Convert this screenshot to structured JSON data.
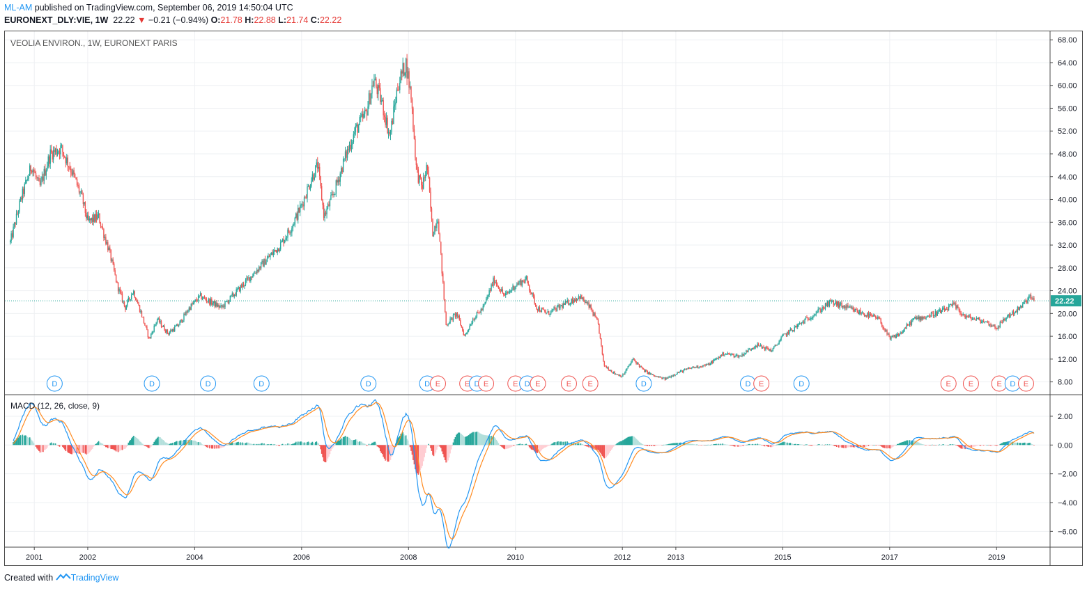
{
  "header": {
    "author": "ML-AM",
    "published_text": "published on TradingView.com, September 06, 2019 14:50:04 UTC"
  },
  "quote": {
    "symbol": "EURONEXT_DLY:VIE, 1W",
    "last": "22.22",
    "change": "−0.21 (−0.94%)",
    "o_label": "O:",
    "o": "21.78",
    "h_label": "H:",
    "h": "22.88",
    "l_label": "L:",
    "l": "21.74",
    "c_label": "C:",
    "c": "22.22"
  },
  "footer": {
    "created_with": "Created with",
    "brand": "TradingView"
  },
  "colors": {
    "up": "#26a69a",
    "down": "#ef5350",
    "macd": "#2196f3",
    "signal": "#ff8a1f",
    "hist_up": "#26a69a",
    "hist_up_light": "#b2dfdb",
    "hist_down": "#ef5350",
    "hist_down_light": "#ffcdd2",
    "last_price_bg": "#26a69a",
    "grid": "#eef0f3",
    "text": "#131722"
  },
  "chart_data": [
    {
      "type": "candlestick",
      "title": "VEOLIA ENVIRON., 1W, EURONEXT PARIS",
      "ylim": [
        6,
        69
      ],
      "y_ticks": [
        "68.00",
        "64.00",
        "60.00",
        "56.00",
        "52.00",
        "48.00",
        "44.00",
        "40.00",
        "36.00",
        "32.00",
        "28.00",
        "24.00",
        "20.00",
        "16.00",
        "12.00",
        "8.00"
      ],
      "last_price": "22.22",
      "x_ticks": [
        "2001",
        "2002",
        "2004",
        "2006",
        "2008",
        "2010",
        "2012",
        "2013",
        "2015",
        "2017",
        "2019"
      ],
      "x_tick_years": [
        2001.0,
        2002.0,
        2004.0,
        2006.0,
        2008.0,
        2010.0,
        2012.0,
        2013.0,
        2015.0,
        2017.0,
        2019.0
      ],
      "xlim": [
        2000.45,
        2020.0
      ],
      "close_path": [
        [
          2000.55,
          32.5
        ],
        [
          2000.75,
          40
        ],
        [
          2000.95,
          46
        ],
        [
          2001.1,
          42
        ],
        [
          2001.3,
          48
        ],
        [
          2001.5,
          49
        ],
        [
          2001.7,
          45
        ],
        [
          2001.9,
          40
        ],
        [
          2002.0,
          36
        ],
        [
          2002.2,
          37
        ],
        [
          2002.4,
          31
        ],
        [
          2002.55,
          25
        ],
        [
          2002.7,
          21
        ],
        [
          2002.85,
          24
        ],
        [
          2003.0,
          20
        ],
        [
          2003.15,
          15.5
        ],
        [
          2003.3,
          19
        ],
        [
          2003.5,
          16.5
        ],
        [
          2003.7,
          18
        ],
        [
          2003.9,
          21
        ],
        [
          2004.1,
          23
        ],
        [
          2004.3,
          22
        ],
        [
          2004.5,
          21
        ],
        [
          2004.7,
          23
        ],
        [
          2005.0,
          26
        ],
        [
          2005.3,
          29
        ],
        [
          2005.6,
          32
        ],
        [
          2005.8,
          35
        ],
        [
          2006.0,
          39
        ],
        [
          2006.2,
          44
        ],
        [
          2006.3,
          46
        ],
        [
          2006.42,
          37
        ],
        [
          2006.6,
          41
        ],
        [
          2006.8,
          47
        ],
        [
          2007.0,
          52
        ],
        [
          2007.2,
          55
        ],
        [
          2007.35,
          61
        ],
        [
          2007.5,
          57
        ],
        [
          2007.65,
          51
        ],
        [
          2007.8,
          60
        ],
        [
          2007.95,
          64
        ],
        [
          2008.05,
          58
        ],
        [
          2008.15,
          45
        ],
        [
          2008.25,
          42
        ],
        [
          2008.35,
          46
        ],
        [
          2008.45,
          34
        ],
        [
          2008.55,
          37
        ],
        [
          2008.7,
          18
        ],
        [
          2008.9,
          20
        ],
        [
          2009.05,
          16
        ],
        [
          2009.2,
          19
        ],
        [
          2009.4,
          21
        ],
        [
          2009.6,
          26
        ],
        [
          2009.8,
          23
        ],
        [
          2010.0,
          25
        ],
        [
          2010.2,
          26
        ],
        [
          2010.4,
          21
        ],
        [
          2010.6,
          20
        ],
        [
          2010.8,
          21
        ],
        [
          2011.0,
          22
        ],
        [
          2011.2,
          23
        ],
        [
          2011.4,
          21
        ],
        [
          2011.55,
          18
        ],
        [
          2011.65,
          11
        ],
        [
          2011.85,
          9.5
        ],
        [
          2012.0,
          9
        ],
        [
          2012.2,
          12
        ],
        [
          2012.4,
          10
        ],
        [
          2012.6,
          9
        ],
        [
          2012.8,
          8.5
        ],
        [
          2013.0,
          9.5
        ],
        [
          2013.3,
          10.5
        ],
        [
          2013.6,
          11
        ],
        [
          2013.9,
          13
        ],
        [
          2014.2,
          12.5
        ],
        [
          2014.5,
          14.5
        ],
        [
          2014.8,
          13.5
        ],
        [
          2015.0,
          16
        ],
        [
          2015.3,
          18
        ],
        [
          2015.6,
          20
        ],
        [
          2015.9,
          22
        ],
        [
          2016.2,
          21
        ],
        [
          2016.5,
          20
        ],
        [
          2016.8,
          19
        ],
        [
          2017.0,
          15.5
        ],
        [
          2017.2,
          16.5
        ],
        [
          2017.45,
          19
        ],
        [
          2017.7,
          19.5
        ],
        [
          2018.0,
          20.5
        ],
        [
          2018.2,
          21.5
        ],
        [
          2018.4,
          19.5
        ],
        [
          2018.6,
          19
        ],
        [
          2018.8,
          18.5
        ],
        [
          2019.0,
          17.5
        ],
        [
          2019.2,
          19.5
        ],
        [
          2019.45,
          21
        ],
        [
          2019.62,
          23
        ],
        [
          2019.7,
          22.22
        ]
      ],
      "events": [
        {
          "label": "D",
          "t": 2001.38
        },
        {
          "label": "D",
          "t": 2003.2
        },
        {
          "label": "D",
          "t": 2004.25
        },
        {
          "label": "D",
          "t": 2005.25
        },
        {
          "label": "D",
          "t": 2007.25
        },
        {
          "label": "D",
          "t": 2008.35
        },
        {
          "label": "E",
          "t": 2008.55
        },
        {
          "label": "E",
          "t": 2009.1
        },
        {
          "label": "D",
          "t": 2009.28
        },
        {
          "label": "E",
          "t": 2009.45
        },
        {
          "label": "E",
          "t": 2010.0
        },
        {
          "label": "D",
          "t": 2010.22
        },
        {
          "label": "E",
          "t": 2010.42
        },
        {
          "label": "E",
          "t": 2011.0
        },
        {
          "label": "E",
          "t": 2011.4
        },
        {
          "label": "D",
          "t": 2012.4
        },
        {
          "label": "D",
          "t": 2014.35
        },
        {
          "label": "E",
          "t": 2014.6
        },
        {
          "label": "D",
          "t": 2015.35
        },
        {
          "label": "E",
          "t": 2018.1
        },
        {
          "label": "E",
          "t": 2018.52
        },
        {
          "label": "E",
          "t": 2019.05
        },
        {
          "label": "D",
          "t": 2019.3
        },
        {
          "label": "E",
          "t": 2019.55
        }
      ]
    },
    {
      "type": "line",
      "title": "MACD (12, 26, close, 9)",
      "ylim": [
        -7.0,
        3.4
      ],
      "y_ticks": [
        "2.00",
        "0.00",
        "−2.00",
        "−4.00",
        "−6.00"
      ],
      "series": [
        {
          "name": "MACD"
        },
        {
          "name": "Signal"
        },
        {
          "name": "Histogram"
        }
      ]
    }
  ]
}
